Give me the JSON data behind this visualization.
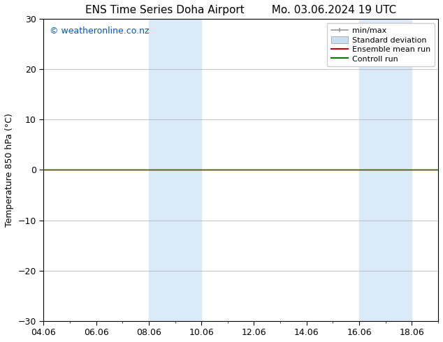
{
  "title_left": "ENS Time Series Doha Airport",
  "title_right": "Mo. 03.06.2024 19 UTC",
  "ylabel": "Temperature 850 hPa (°C)",
  "xlabel": "",
  "ylim": [
    -30,
    30
  ],
  "yticks": [
    -30,
    -20,
    -10,
    0,
    10,
    20,
    30
  ],
  "xtick_labels": [
    "04.06",
    "06.06",
    "08.06",
    "10.06",
    "12.06",
    "14.06",
    "16.06",
    "18.06"
  ],
  "xtick_positions": [
    0,
    2,
    4,
    6,
    8,
    10,
    12,
    14
  ],
  "xlim": [
    0,
    15
  ],
  "watermark": "© weatheronline.co.nz",
  "watermark_color": "#0055cc",
  "background_color": "#ffffff",
  "plot_bg_color": "#ffffff",
  "shaded_regions": [
    {
      "xstart": 4,
      "xend": 6,
      "color": "#daeaf8"
    },
    {
      "xstart": 12,
      "xend": 14,
      "color": "#daeaf8"
    }
  ],
  "control_run_y": 0.0,
  "control_run_color": "#007700",
  "ensemble_mean_color": "#cc0000",
  "minmax_color": "#999999",
  "std_dev_color": "#c8dff0",
  "legend_labels": [
    "min/max",
    "Standard deviation",
    "Ensemble mean run",
    "Controll run"
  ],
  "title_fontsize": 11,
  "axis_fontsize": 9,
  "tick_fontsize": 9,
  "legend_fontsize": 8
}
